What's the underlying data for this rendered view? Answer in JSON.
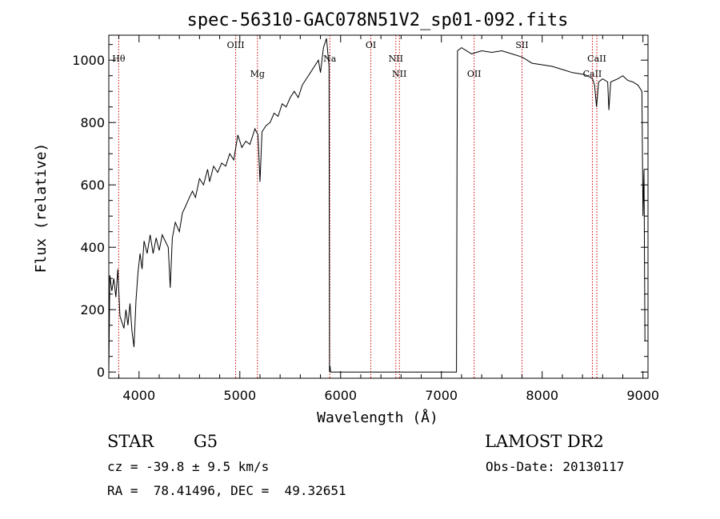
{
  "chart_data": {
    "type": "line",
    "title": "spec-56310-GAC078N51V2_sp01-092.fits",
    "xlabel": "Wavelength (Å)",
    "ylabel": "Flux (relative)",
    "xlim": [
      3700,
      9050
    ],
    "ylim": [
      -20,
      1080
    ],
    "x_ticks": [
      4000,
      5000,
      6000,
      7000,
      8000,
      9000
    ],
    "y_ticks": [
      0,
      200,
      400,
      600,
      800,
      1000
    ],
    "grid": false,
    "line_color": "#000000",
    "marker_color": "#cc0000",
    "spectrum": [
      [
        3700,
        0
      ],
      [
        3710,
        310
      ],
      [
        3730,
        260
      ],
      [
        3750,
        300
      ],
      [
        3770,
        240
      ],
      [
        3790,
        330
      ],
      [
        3810,
        180
      ],
      [
        3830,
        160
      ],
      [
        3850,
        140
      ],
      [
        3870,
        200
      ],
      [
        3890,
        150
      ],
      [
        3910,
        220
      ],
      [
        3930,
        130
      ],
      [
        3950,
        80
      ],
      [
        3970,
        230
      ],
      [
        3990,
        320
      ],
      [
        4010,
        380
      ],
      [
        4030,
        330
      ],
      [
        4050,
        420
      ],
      [
        4080,
        380
      ],
      [
        4110,
        440
      ],
      [
        4140,
        380
      ],
      [
        4170,
        430
      ],
      [
        4200,
        390
      ],
      [
        4230,
        440
      ],
      [
        4260,
        420
      ],
      [
        4290,
        400
      ],
      [
        4310,
        270
      ],
      [
        4330,
        430
      ],
      [
        4360,
        480
      ],
      [
        4400,
        450
      ],
      [
        4430,
        510
      ],
      [
        4460,
        530
      ],
      [
        4500,
        560
      ],
      [
        4530,
        580
      ],
      [
        4560,
        560
      ],
      [
        4600,
        620
      ],
      [
        4640,
        600
      ],
      [
        4680,
        650
      ],
      [
        4700,
        610
      ],
      [
        4740,
        660
      ],
      [
        4780,
        640
      ],
      [
        4820,
        670
      ],
      [
        4860,
        660
      ],
      [
        4900,
        700
      ],
      [
        4940,
        680
      ],
      [
        4980,
        760
      ],
      [
        5020,
        720
      ],
      [
        5060,
        740
      ],
      [
        5100,
        730
      ],
      [
        5150,
        780
      ],
      [
        5180,
        760
      ],
      [
        5200,
        610
      ],
      [
        5220,
        770
      ],
      [
        5260,
        790
      ],
      [
        5300,
        800
      ],
      [
        5340,
        830
      ],
      [
        5380,
        820
      ],
      [
        5420,
        860
      ],
      [
        5460,
        850
      ],
      [
        5500,
        880
      ],
      [
        5540,
        900
      ],
      [
        5580,
        880
      ],
      [
        5620,
        920
      ],
      [
        5660,
        940
      ],
      [
        5700,
        960
      ],
      [
        5740,
        980
      ],
      [
        5780,
        1000
      ],
      [
        5800,
        960
      ],
      [
        5830,
        1040
      ],
      [
        5860,
        1070
      ],
      [
        5880,
        1000
      ],
      [
        5885,
        980
      ],
      [
        5890,
        0
      ],
      [
        5895,
        20
      ],
      [
        5900,
        0
      ],
      [
        7150,
        0
      ],
      [
        7155,
        700
      ],
      [
        7160,
        1030
      ],
      [
        7200,
        1040
      ],
      [
        7300,
        1020
      ],
      [
        7400,
        1030
      ],
      [
        7500,
        1025
      ],
      [
        7600,
        1030
      ],
      [
        7700,
        1020
      ],
      [
        7800,
        1010
      ],
      [
        7850,
        1000
      ],
      [
        7900,
        990
      ],
      [
        8000,
        985
      ],
      [
        8100,
        980
      ],
      [
        8200,
        970
      ],
      [
        8300,
        960
      ],
      [
        8400,
        955
      ],
      [
        8450,
        950
      ],
      [
        8500,
        940
      ],
      [
        8520,
        920
      ],
      [
        8540,
        850
      ],
      [
        8560,
        930
      ],
      [
        8600,
        940
      ],
      [
        8650,
        930
      ],
      [
        8662,
        840
      ],
      [
        8680,
        930
      ],
      [
        8750,
        940
      ],
      [
        8800,
        950
      ],
      [
        8850,
        935
      ],
      [
        8900,
        930
      ],
      [
        8950,
        920
      ],
      [
        8990,
        900
      ],
      [
        9000,
        500
      ],
      [
        9010,
        650
      ],
      [
        9020,
        100
      ]
    ],
    "lines": [
      {
        "label": "Hθ",
        "x": 3798,
        "label_row": 1
      },
      {
        "label": "OIII",
        "x": 4959,
        "label_row": 0
      },
      {
        "label": "Mg",
        "x": 5175,
        "label_row": 2
      },
      {
        "label": "Na",
        "x": 5893,
        "label_row": 1
      },
      {
        "label": "OI",
        "x": 6300,
        "label_row": 0
      },
      {
        "label": "NII",
        "x": 6548,
        "label_row": 1
      },
      {
        "label": "NII",
        "x": 6583,
        "label_row": 2
      },
      {
        "label": "OII",
        "x": 7325,
        "label_row": 2
      },
      {
        "label": "SII",
        "x": 7800,
        "label_row": 0
      },
      {
        "label": "CaII",
        "x": 8498,
        "label_row": 2
      },
      {
        "label": "CaII",
        "x": 8542,
        "label_row": 1
      }
    ]
  },
  "info": {
    "object_class": "STAR",
    "subclass": "G5",
    "survey": "LAMOST DR2",
    "redshift": "cz = -39.8 ± 9.5 km/s",
    "obs_date": "Obs-Date: 20130117",
    "coords": "RA =  78.41496, DEC =  49.32651"
  }
}
